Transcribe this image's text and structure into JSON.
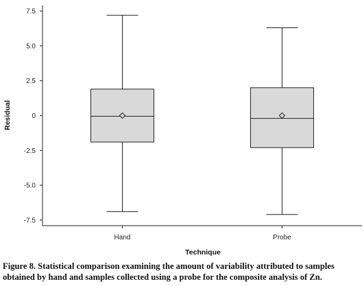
{
  "chart_data": {
    "type": "boxplot",
    "categories": [
      "Hand",
      "Probe"
    ],
    "boxes": [
      {
        "category": "Hand",
        "whisker_low": -6.9,
        "q1": -1.9,
        "median": -0.05,
        "q3": 1.9,
        "whisker_high": 7.2,
        "mean": 0.0
      },
      {
        "category": "Probe",
        "whisker_low": -7.1,
        "q1": -2.3,
        "median": -0.2,
        "q3": 2.0,
        "whisker_high": 6.3,
        "mean": 0.0
      }
    ],
    "xlabel": "Technique",
    "ylabel": "Residual",
    "ylim": [
      -7.9,
      7.9
    ],
    "yticks": [
      7.5,
      5.0,
      2.5,
      0,
      -2.5,
      -5.0,
      -7.5
    ],
    "ytick_labels": [
      "7.5",
      "5.0",
      "2.5",
      "0",
      "-2.5",
      "-5.0",
      "-7.5"
    ],
    "grid": false,
    "box_fill": "#d9d9d9",
    "line_color": "#222222"
  },
  "caption": "Figure 8. Statistical comparison examining the amount of variability attributed to samples obtained by hand and samples collected using a probe for the composite analysis of Zn."
}
